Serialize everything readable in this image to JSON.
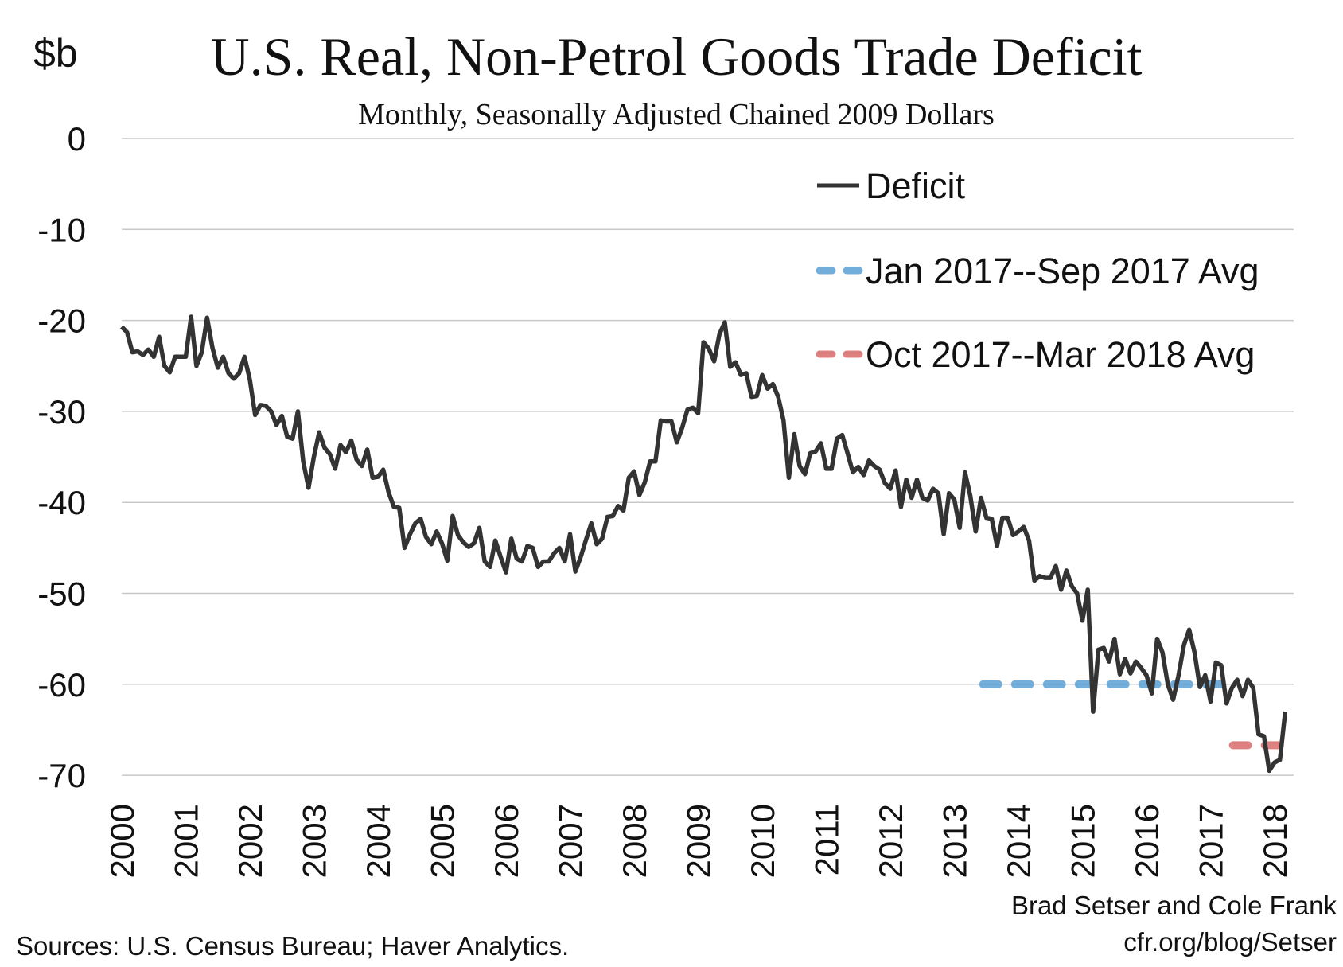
{
  "chart_data": {
    "type": "line",
    "title": "U.S. Real, Non-Petrol Goods Trade Deficit",
    "subtitle": "Monthly, Seasonally Adjusted Chained 2009 Dollars",
    "ylabel": "$b",
    "xlabel": "",
    "ylim": [
      -70,
      0
    ],
    "yticks": [
      0,
      -10,
      -20,
      -30,
      -40,
      -50,
      -60,
      -70
    ],
    "xticks": [
      "2000",
      "2001",
      "2002",
      "2003",
      "2004",
      "2005",
      "2006",
      "2007",
      "2008",
      "2009",
      "2010",
      "2011",
      "2012",
      "2013",
      "2014",
      "2015",
      "2016",
      "2017",
      "2018"
    ],
    "grid": true,
    "legend_position": "top-right",
    "start": "2000-01",
    "frequency": "monthly",
    "series": [
      {
        "name": "Deficit",
        "color": "#333333",
        "style": "solid",
        "values": [
          -20.7,
          -21.3,
          -23.5,
          -23.4,
          -23.8,
          -23.2,
          -24.0,
          -21.8,
          -25.0,
          -25.7,
          -24.0,
          -24.0,
          -24.0,
          -19.6,
          -25.0,
          -23.5,
          -19.7,
          -23.0,
          -25.2,
          -24.0,
          -25.8,
          -26.4,
          -25.8,
          -24.0,
          -26.5,
          -30.4,
          -29.3,
          -29.4,
          -30.0,
          -31.5,
          -30.5,
          -32.8,
          -33.0,
          -30.0,
          -35.5,
          -38.4,
          -35.0,
          -32.3,
          -34.0,
          -34.7,
          -36.3,
          -33.7,
          -34.5,
          -33.2,
          -35.3,
          -36.0,
          -34.2,
          -37.3,
          -37.2,
          -36.4,
          -38.9,
          -40.5,
          -40.6,
          -45.0,
          -43.5,
          -42.3,
          -41.8,
          -43.8,
          -44.6,
          -43.2,
          -44.5,
          -46.4,
          -41.5,
          -43.6,
          -44.4,
          -44.9,
          -44.5,
          -42.8,
          -46.5,
          -47.1,
          -44.2,
          -46.0,
          -47.7,
          -44.0,
          -46.2,
          -46.5,
          -44.8,
          -45.0,
          -47.1,
          -46.5,
          -46.5,
          -45.6,
          -45.0,
          -46.5,
          -43.5,
          -47.6,
          -46.0,
          -44.1,
          -42.3,
          -44.6,
          -44.0,
          -41.6,
          -41.5,
          -40.4,
          -40.9,
          -37.3,
          -36.6,
          -39.2,
          -37.8,
          -35.5,
          -35.5,
          -31.0,
          -31.1,
          -31.1,
          -33.4,
          -31.8,
          -29.8,
          -29.6,
          -30.2,
          -22.4,
          -23.1,
          -24.5,
          -21.5,
          -20.2,
          -25.1,
          -24.6,
          -26.0,
          -25.8,
          -28.4,
          -28.3,
          -26.0,
          -27.5,
          -27.0,
          -28.4,
          -31.0,
          -37.3,
          -32.5,
          -36.0,
          -36.9,
          -34.6,
          -34.4,
          -33.5,
          -36.3,
          -36.3,
          -33.0,
          -32.6,
          -34.6,
          -36.7,
          -36.1,
          -37.0,
          -35.4,
          -36.0,
          -36.4,
          -37.9,
          -38.5,
          -36.5,
          -40.5,
          -37.5,
          -39.5,
          -37.5,
          -39.5,
          -39.8,
          -38.5,
          -39.0,
          -43.5,
          -39.0,
          -39.7,
          -42.8,
          -36.7,
          -39.3,
          -43.2,
          -39.5,
          -41.7,
          -41.8,
          -44.8,
          -41.7,
          -41.7,
          -43.6,
          -43.2,
          -42.7,
          -44.2,
          -48.6,
          -48.1,
          -48.3,
          -48.3,
          -47.0,
          -49.6,
          -47.5,
          -49.2,
          -50.0,
          -53.0,
          -49.6,
          -63.0,
          -56.2,
          -56.0,
          -57.5,
          -55.0,
          -58.9,
          -57.2,
          -58.8,
          -57.5,
          -58.2,
          -59.0,
          -61.0,
          -55.0,
          -56.5,
          -60.0,
          -61.7,
          -59.0,
          -55.7,
          -54.0,
          -56.5,
          -60.3,
          -59.0,
          -61.9,
          -57.6,
          -57.9,
          -62.1,
          -60.4,
          -59.5,
          -61.3,
          -59.5,
          -60.4,
          -65.5,
          -65.7,
          -69.5,
          -68.6,
          -68.3,
          -63.0
        ]
      },
      {
        "name": "Jan 2017--Sep 2017 Avg",
        "color": "#5B9FD4",
        "style": "dashed",
        "value": -60.0,
        "x_range": [
          2013.45,
          2017.4
        ]
      },
      {
        "name": "Oct 2017--Mar 2018 Avg",
        "color": "#D96A6A",
        "style": "dashed",
        "value": -66.7,
        "x_range": [
          2017.35,
          2018.35
        ]
      }
    ]
  },
  "credit": {
    "line1": "Brad Setser and Cole Frank",
    "line2": "cfr.org/blog/Setser"
  },
  "sources": "Sources: U.S. Census Bureau; Haver Analytics."
}
